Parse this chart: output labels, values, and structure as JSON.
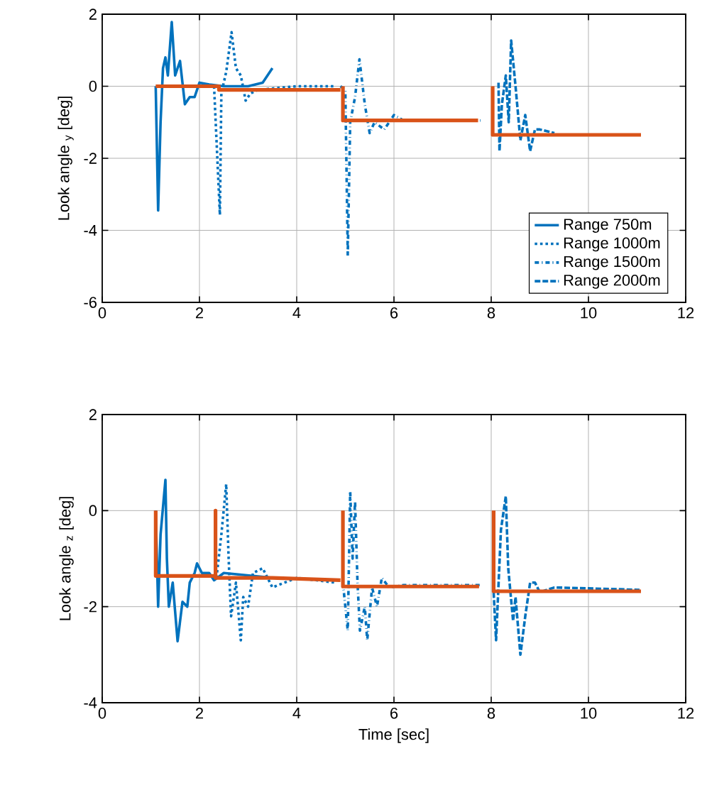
{
  "chart_data": [
    {
      "type": "line",
      "ylabel": "Look angle $_{y}$ [deg]",
      "xlim": [
        0,
        12
      ],
      "ylim": [
        -6,
        2
      ],
      "xticks": [
        0,
        2,
        4,
        6,
        8,
        10,
        12
      ],
      "yticks": [
        -6,
        -4,
        -2,
        0,
        2
      ],
      "grid": true,
      "legend": "bottom right",
      "marker": "none",
      "series": [
        {
          "name": "Range 750m",
          "color": "#0072bd",
          "line_style": "solid",
          "x": [
            1.1,
            1.15,
            1.2,
            1.25,
            1.3,
            1.35,
            1.43,
            1.5,
            1.6,
            1.7,
            1.8,
            1.9,
            2.0,
            2.2,
            2.5,
            3.0,
            3.3,
            3.5
          ],
          "values": [
            0,
            -3.45,
            -1,
            0.5,
            0.8,
            0.3,
            1.78,
            0.3,
            0.7,
            -0.5,
            -0.3,
            -0.3,
            0.1,
            0.05,
            0,
            0,
            0.1,
            0.5
          ]
        },
        {
          "name": "Range 1000m",
          "color": "#0072bd",
          "line_style": "dotted",
          "x": [
            2.3,
            2.42,
            2.45,
            2.55,
            2.66,
            2.75,
            2.85,
            2.95,
            3.05,
            3.2,
            4.0,
            4.8
          ],
          "values": [
            0,
            -3.57,
            -0.2,
            0.4,
            1.5,
            0.5,
            0.3,
            -0.4,
            -0.2,
            -0.1,
            0.0,
            0.0
          ]
        },
        {
          "name": "Range 1500m",
          "color": "#0072bd",
          "line_style": "dashdot",
          "x": [
            4.9,
            5.0,
            5.05,
            5.1,
            5.2,
            5.29,
            5.4,
            5.5,
            5.6,
            5.8,
            6.0,
            6.2,
            7.8
          ],
          "values": [
            0,
            -0.1,
            -4.7,
            -1,
            -0.3,
            0.75,
            -0.5,
            -1.3,
            -1.0,
            -1.2,
            -0.8,
            -0.95,
            -0.95
          ]
        },
        {
          "name": "Range 2000m",
          "color": "#0072bd",
          "line_style": "dashed",
          "x": [
            8.15,
            8.17,
            8.22,
            8.3,
            8.36,
            8.41,
            8.5,
            8.6,
            8.7,
            8.8,
            8.9,
            9.0,
            9.3
          ],
          "values": [
            0.1,
            -1.8,
            -0.5,
            0.3,
            -1,
            1.27,
            0,
            -1.5,
            -0.8,
            -1.8,
            -1.2,
            -1.2,
            -1.3
          ]
        },
        {
          "color": "#d95319",
          "line_style": "solid",
          "x": [
            1.1,
            2.4,
            2.4,
            4.9,
            4.92,
            4.95,
            4.95,
            7.73,
            7.9,
            8.03,
            8.03,
            11.08
          ],
          "values": [
            0,
            0,
            -0.1,
            -0.1,
            null,
            0,
            -0.95,
            -0.95,
            null,
            0,
            -1.35,
            -1.35
          ]
        }
      ]
    },
    {
      "type": "line",
      "xlabel": "Time [sec]",
      "ylabel": "Look angle $_{z}$ [deg]",
      "xlim": [
        0,
        12
      ],
      "ylim": [
        -4,
        2
      ],
      "xticks": [
        0,
        2,
        4,
        6,
        8,
        10,
        12
      ],
      "yticks": [
        -4,
        -2,
        0,
        2
      ],
      "grid": true,
      "marker": "none",
      "series": [
        {
          "color": "#0072bd",
          "line_style": "solid",
          "x": [
            1.1,
            1.15,
            1.2,
            1.3,
            1.33,
            1.37,
            1.45,
            1.55,
            1.65,
            1.75,
            1.8,
            1.9,
            1.95,
            2.05,
            2.2,
            2.3,
            2.5,
            3.5
          ],
          "values": [
            0,
            -2,
            -0.5,
            0.64,
            -1.0,
            -2.0,
            -1.5,
            -2.72,
            -1.9,
            -2.0,
            -1.5,
            -1.3,
            -1.1,
            -1.3,
            -1.3,
            -1.45,
            -1.3,
            -1.4
          ]
        },
        {
          "color": "#0072bd",
          "line_style": "dotted",
          "x": [
            2.35,
            2.45,
            2.55,
            2.6,
            2.65,
            2.75,
            2.85,
            2.9,
            3.0,
            3.1,
            3.3,
            3.5,
            4.0,
            4.8
          ],
          "values": [
            -1.4,
            -0.5,
            0.55,
            -1.0,
            -2.2,
            -1.5,
            -2.7,
            -1.8,
            -2.0,
            -1.3,
            -1.2,
            -1.6,
            -1.4,
            -1.5
          ]
        },
        {
          "color": "#0072bd",
          "line_style": "dashdot",
          "x": [
            4.95,
            5.05,
            5.1,
            5.15,
            5.2,
            5.25,
            5.3,
            5.4,
            5.45,
            5.55,
            5.65,
            5.75,
            5.9,
            6.2,
            7.8
          ],
          "values": [
            -1.5,
            -2.5,
            0.4,
            -1.0,
            0.2,
            -1.5,
            -2.5,
            -2.0,
            -2.7,
            -1.6,
            -2.0,
            -1.4,
            -1.6,
            -1.55,
            -1.55
          ]
        },
        {
          "color": "#0072bd",
          "line_style": "dashed",
          "x": [
            8.05,
            8.1,
            8.2,
            8.3,
            8.35,
            8.45,
            8.5,
            8.6,
            8.7,
            8.8,
            8.9,
            9.0,
            9.3,
            11.05
          ],
          "values": [
            -1.7,
            -2.7,
            -0.4,
            0.3,
            -1.2,
            -2.3,
            -1.8,
            -3.0,
            -2.2,
            -1.5,
            -1.5,
            -1.7,
            -1.6,
            -1.65
          ]
        },
        {
          "color": "#d95319",
          "line_style": "solid",
          "x": [
            1.1,
            1.1,
            2.33,
            2.33,
            2.33,
            3.5,
            4.9,
            4.92,
            4.95,
            4.95,
            7.75,
            7.9,
            8.05,
            8.05,
            11.08
          ],
          "values": [
            0,
            -1.36,
            -1.36,
            0,
            -1.4,
            -1.4,
            -1.45,
            null,
            0,
            -1.58,
            -1.58,
            null,
            0,
            -1.68,
            -1.68
          ]
        }
      ]
    }
  ]
}
